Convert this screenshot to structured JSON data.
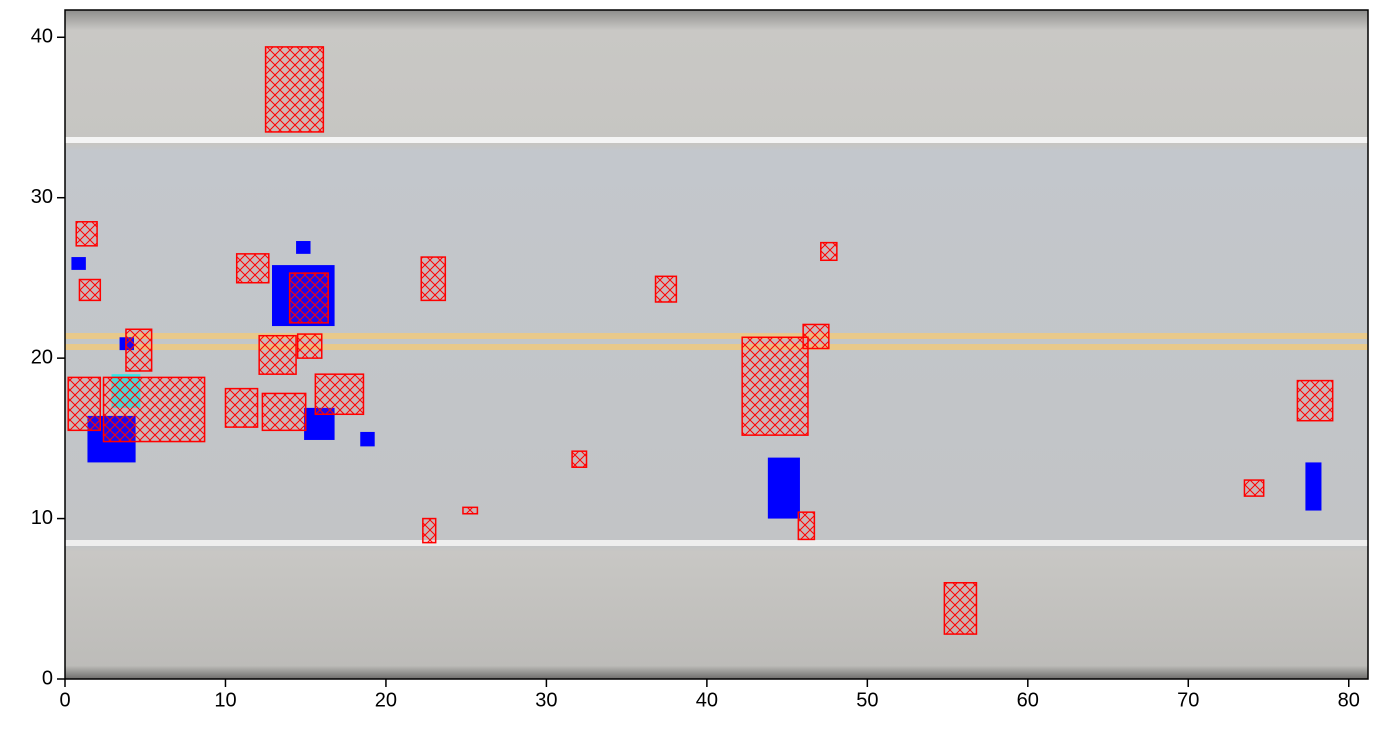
{
  "chart_data": {
    "type": "rectangles",
    "xlim": [
      0,
      81.2
    ],
    "ylim": [
      0,
      41.7
    ],
    "xticks": [
      0,
      10,
      20,
      30,
      40,
      50,
      60,
      70,
      80
    ],
    "yticks": [
      0,
      10,
      20,
      30,
      40
    ],
    "series": [
      {
        "color": "#0000ff",
        "hatch": false,
        "rects": [
          [
            0.4,
            25.5,
            1.3,
            26.3
          ],
          [
            14.4,
            26.5,
            15.3,
            27.3
          ],
          [
            12.9,
            22.0,
            16.8,
            25.8
          ],
          [
            3.4,
            20.5,
            4.3,
            21.3
          ],
          [
            1.4,
            13.5,
            4.4,
            16.4
          ],
          [
            14.9,
            14.9,
            16.8,
            16.9
          ],
          [
            18.4,
            14.5,
            19.3,
            15.4
          ],
          [
            43.8,
            10.0,
            45.8,
            13.8
          ],
          [
            77.3,
            10.5,
            78.3,
            13.5
          ]
        ]
      },
      {
        "color": "#33e6e6",
        "hatch": false,
        "rects": [
          [
            2.9,
            16.9,
            4.7,
            19.0
          ]
        ]
      },
      {
        "color": "#ff0000",
        "hatch": true,
        "rects": [
          [
            12.5,
            34.1,
            16.1,
            39.4
          ],
          [
            0.7,
            27.0,
            2.0,
            28.5
          ],
          [
            0.9,
            23.6,
            2.2,
            24.9
          ],
          [
            10.7,
            24.7,
            12.7,
            26.5
          ],
          [
            14.0,
            22.2,
            16.4,
            25.3
          ],
          [
            22.2,
            23.6,
            23.7,
            26.3
          ],
          [
            36.8,
            23.5,
            38.1,
            25.1
          ],
          [
            47.1,
            26.1,
            48.1,
            27.2
          ],
          [
            46.0,
            20.6,
            47.6,
            22.1
          ],
          [
            42.2,
            15.2,
            46.3,
            21.3
          ],
          [
            3.8,
            19.2,
            5.4,
            21.8
          ],
          [
            12.1,
            19.0,
            14.4,
            21.4
          ],
          [
            14.5,
            20.0,
            16.0,
            21.5
          ],
          [
            0.2,
            15.5,
            2.2,
            18.8
          ],
          [
            2.4,
            14.8,
            8.7,
            18.8
          ],
          [
            15.6,
            16.5,
            18.6,
            19.0
          ],
          [
            10.0,
            15.7,
            12.0,
            18.1
          ],
          [
            12.3,
            15.5,
            15.0,
            17.8
          ],
          [
            76.8,
            16.1,
            79.0,
            18.6
          ],
          [
            31.6,
            13.2,
            32.5,
            14.2
          ],
          [
            24.8,
            10.3,
            25.7,
            10.7
          ],
          [
            22.3,
            8.5,
            23.1,
            10.0
          ],
          [
            45.7,
            8.7,
            46.7,
            10.4
          ],
          [
            73.5,
            11.4,
            74.7,
            12.4
          ],
          [
            54.8,
            2.8,
            56.8,
            6.0
          ]
        ]
      }
    ]
  }
}
